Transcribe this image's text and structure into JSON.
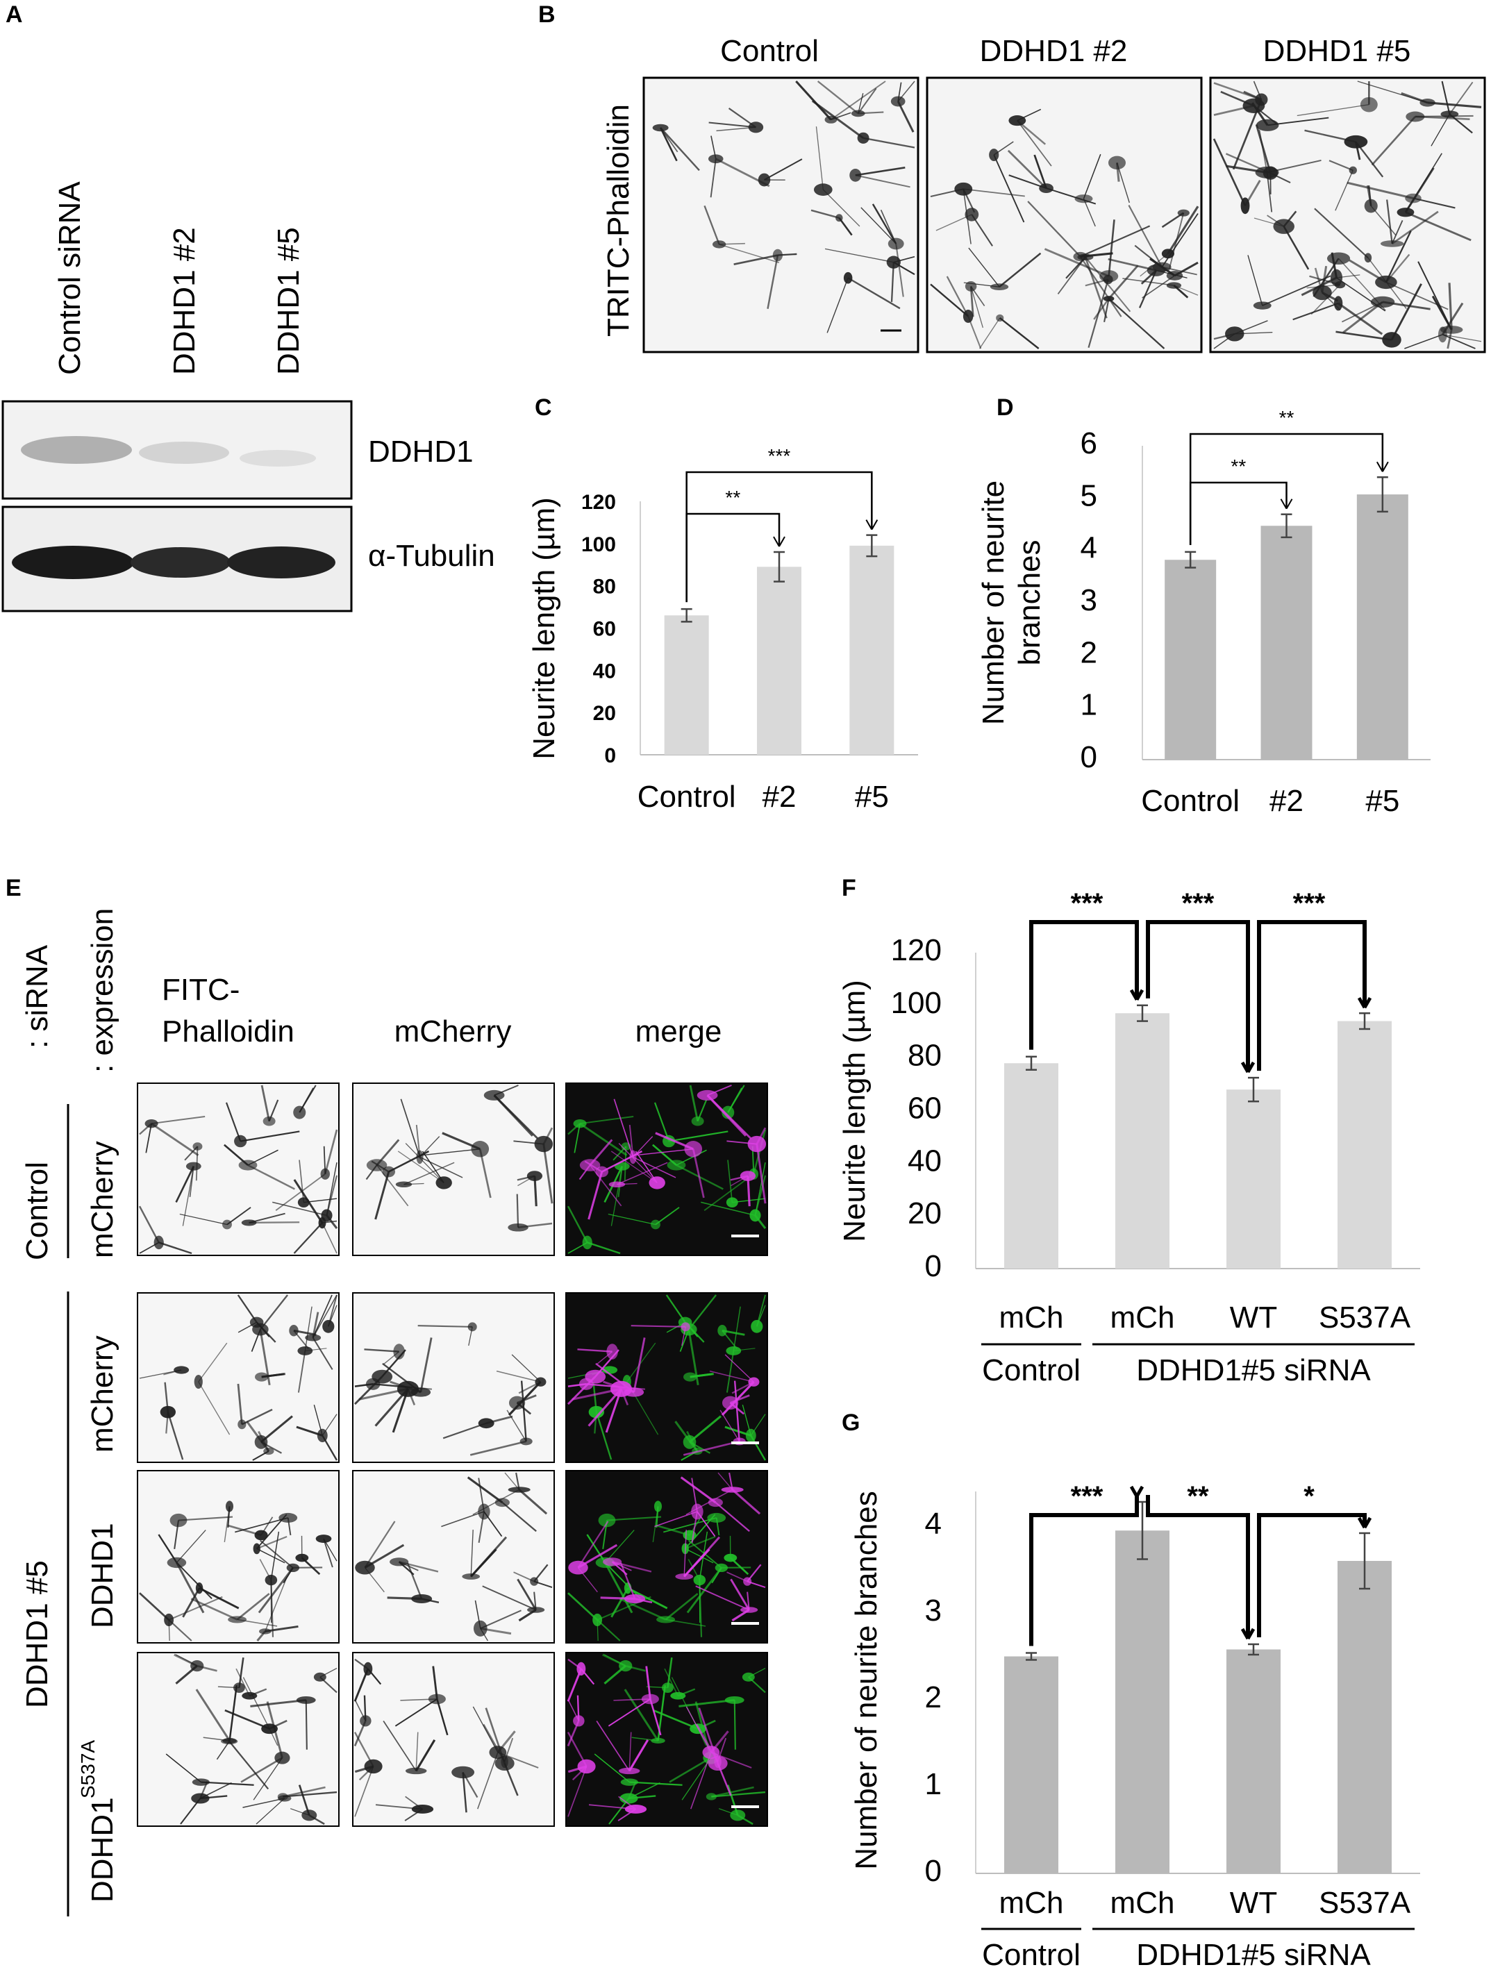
{
  "figure": {
    "panel_letters": [
      "A",
      "B",
      "C",
      "D",
      "E",
      "F",
      "G"
    ],
    "panelA": {
      "lanes": [
        "Control siRNA",
        "DDHD1 #2",
        "DDHD1 #5"
      ],
      "blots": [
        "DDHD1",
        "α-Tubulin"
      ]
    },
    "panelB": {
      "columns": [
        "Control",
        "DDHD1 #2",
        "DDHD1 #5"
      ],
      "row_label": "TRITC-Phalloidin"
    },
    "panelE": {
      "header_siRNA": ": siRNA",
      "header_expression": ": expression",
      "columns": [
        "FITC-\nPhalloidin",
        "mCherry",
        "merge"
      ],
      "group_control": "Control",
      "group_ddhd1": "DDHD1 #5",
      "rows": [
        "mCherry",
        "mCherry",
        "DDHD1",
        "DDHD1"
      ],
      "row4_superscript": "S537A"
    },
    "colors": {
      "bar_light": "#d9d9d9",
      "bar_dark": "#b8b8b8",
      "merge_green": "#22c02a",
      "merge_magenta": "#e040e8"
    }
  },
  "chart_data": [
    {
      "panel": "C",
      "type": "bar",
      "categories": [
        "Control",
        "#2",
        "#5"
      ],
      "values": [
        66,
        89,
        99
      ],
      "errors": [
        3,
        7,
        5
      ],
      "ylabel": "Neurite length (µm)",
      "ylim": [
        0,
        120
      ],
      "yticks": [
        0,
        20,
        40,
        60,
        80,
        100,
        120
      ],
      "significance": [
        {
          "from": 0,
          "to": 1,
          "label": "**"
        },
        {
          "from": 0,
          "to": 2,
          "label": "***"
        }
      ]
    },
    {
      "panel": "D",
      "type": "bar",
      "categories": [
        "Control",
        "#2",
        "#5"
      ],
      "values": [
        3.82,
        4.47,
        5.07
      ],
      "errors": [
        0.15,
        0.22,
        0.33
      ],
      "ylabel": "Number of neurite\nbranches",
      "ylim": [
        0,
        6
      ],
      "yticks": [
        0,
        1,
        2,
        3,
        4,
        5,
        6
      ],
      "significance": [
        {
          "from": 0,
          "to": 1,
          "label": "**"
        },
        {
          "from": 0,
          "to": 2,
          "label": "**"
        }
      ]
    },
    {
      "panel": "F",
      "type": "bar",
      "categories": [
        "mCh",
        "mCh",
        "WT",
        "S537A"
      ],
      "groups": [
        {
          "label": "Control",
          "span": [
            0,
            0
          ]
        },
        {
          "label": "DDHD1#5 siRNA",
          "span": [
            1,
            3
          ]
        }
      ],
      "values": [
        78,
        97,
        68,
        94
      ],
      "errors": [
        2.5,
        3,
        4.5,
        3
      ],
      "ylabel": "Neurite length (µm)",
      "ylim": [
        0,
        120
      ],
      "yticks": [
        0,
        20,
        40,
        60,
        80,
        100,
        120
      ],
      "significance": [
        {
          "from": 0,
          "to": 1,
          "label": "***"
        },
        {
          "from": 1,
          "to": 2,
          "label": "***"
        },
        {
          "from": 2,
          "to": 3,
          "label": "***"
        }
      ]
    },
    {
      "panel": "G",
      "type": "bar",
      "categories": [
        "mCh",
        "mCh",
        "WT",
        "S537A"
      ],
      "groups": [
        {
          "label": "Control",
          "span": [
            0,
            0
          ]
        },
        {
          "label": "DDHD1#5 siRNA",
          "span": [
            1,
            3
          ]
        }
      ],
      "values": [
        2.5,
        3.95,
        2.58,
        3.6
      ],
      "errors": [
        0.04,
        0.33,
        0.06,
        0.32
      ],
      "ylabel": "Number of neurite branches",
      "ylim": [
        0,
        4.4
      ],
      "yticks": [
        0,
        1,
        2,
        3,
        4
      ],
      "significance": [
        {
          "from": 0,
          "to": 1,
          "label": "***"
        },
        {
          "from": 1,
          "to": 2,
          "label": "**"
        },
        {
          "from": 2,
          "to": 3,
          "label": "*"
        }
      ]
    }
  ]
}
